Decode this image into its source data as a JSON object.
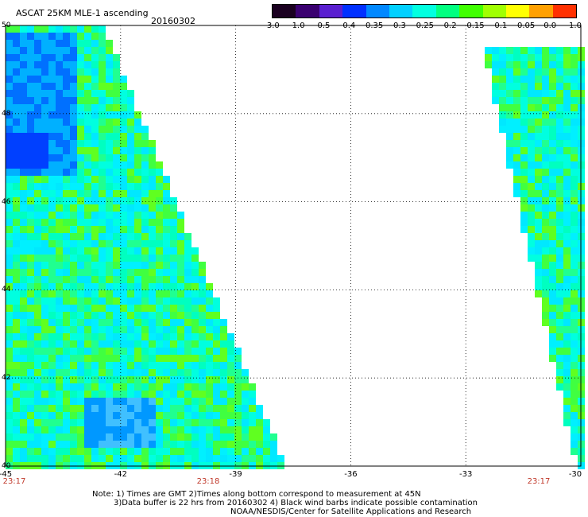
{
  "header": {
    "product": "ASCAT 25KM MLE-1 ascending",
    "date": "20160302"
  },
  "colorbar": {
    "labels": [
      "-3.0",
      "-1.0",
      "-0.5",
      "-0.4",
      "-0.35",
      "-0.3",
      "-0.25",
      "-0.2",
      "-0.15",
      "-0.1",
      "-0.05",
      "0.0",
      "1.0"
    ],
    "colors": [
      "#1a0020",
      "#3a0070",
      "#5a1fd0",
      "#0030ff",
      "#0088ff",
      "#00d0ff",
      "#00ffe0",
      "#00ff80",
      "#40ff00",
      "#a0ff00",
      "#ffff00",
      "#ffa000",
      "#ff3000"
    ]
  },
  "map": {
    "lon_labels": [
      "-45",
      "-42",
      "-39",
      "-36",
      "-33",
      "-30"
    ],
    "lat_labels": [
      "40",
      "42",
      "44",
      "46",
      "48",
      "50"
    ],
    "lon_range": [
      -45,
      -30
    ],
    "lat_range": [
      40,
      50
    ],
    "time_labels": [
      "23:17",
      "23:18",
      "23:17"
    ],
    "grid": "dotted"
  },
  "notes": {
    "line1": "Note: 1) Times are GMT 2)Times along bottom correspond to measurement at 45N",
    "line2": "3)Data buffer is 22 hrs from 20160302 4) Black wind barbs indicate possible contamination",
    "line3": "NOAA/NESDIS/Center for Satellite Applications and Research"
  }
}
